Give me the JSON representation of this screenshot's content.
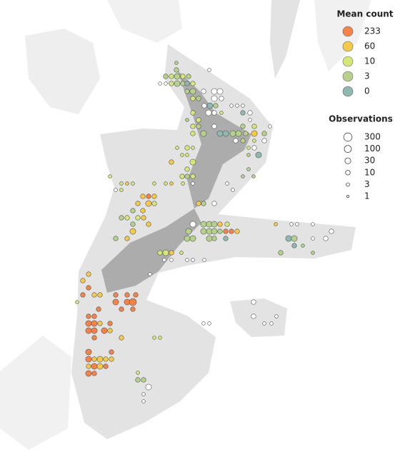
{
  "legend": {
    "mean_count": {
      "title": "Mean count",
      "items": [
        {
          "value": 233,
          "color": "#f4834a"
        },
        {
          "value": 60,
          "color": "#f7c948"
        },
        {
          "value": 10,
          "color": "#d6e77a"
        },
        {
          "value": 3,
          "color": "#b5d18c"
        },
        {
          "value": 0,
          "color": "#8fb8b0"
        }
      ]
    },
    "observations": {
      "title": "Observations",
      "items": [
        300,
        100,
        30,
        10,
        3,
        1
      ]
    }
  }
}
